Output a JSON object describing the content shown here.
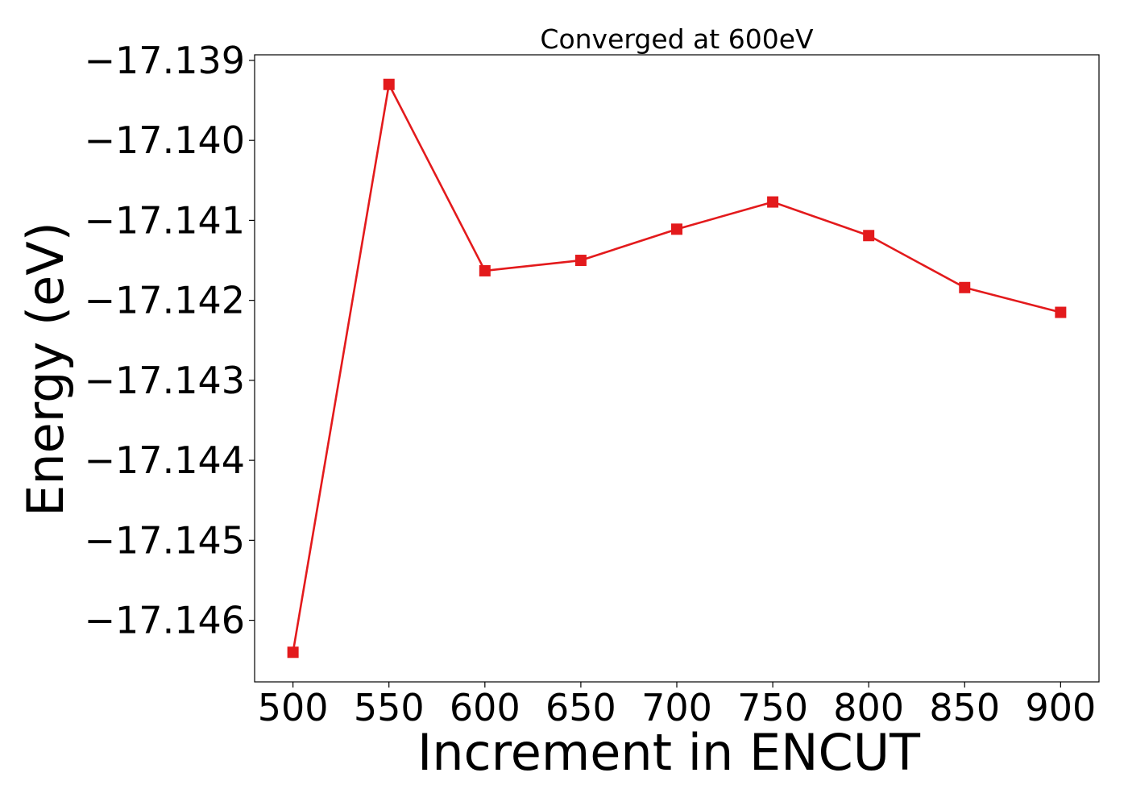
{
  "chart_data": {
    "type": "line",
    "title": "Converged at 600eV",
    "xlabel": "Increment in ENCUT",
    "ylabel": "Energy (eV)",
    "x": [
      500,
      550,
      600,
      650,
      700,
      750,
      800,
      850,
      900
    ],
    "series": [
      {
        "values": [
          -17.1464,
          -17.1393,
          -17.14163,
          -17.1415,
          -17.14111,
          -17.14077,
          -17.14119,
          -17.14184,
          -17.14215
        ],
        "color": "#e31a1c",
        "marker": "square"
      }
    ],
    "xticks": [
      500,
      550,
      600,
      650,
      700,
      750,
      800,
      850,
      900
    ],
    "xtick_labels": [
      "500",
      "550",
      "600",
      "650",
      "700",
      "750",
      "800",
      "850",
      "900"
    ],
    "yticks": [
      -17.139,
      -17.14,
      -17.141,
      -17.142,
      -17.143,
      -17.144,
      -17.145,
      -17.146
    ],
    "ytick_labels": [
      "−17.139",
      "−17.140",
      "−17.141",
      "−17.142",
      "−17.143",
      "−17.144",
      "−17.145",
      "−17.146"
    ],
    "xlim": [
      480,
      920
    ],
    "ylim": [
      -17.14677,
      -17.13893
    ],
    "grid": false,
    "legend": "none"
  }
}
